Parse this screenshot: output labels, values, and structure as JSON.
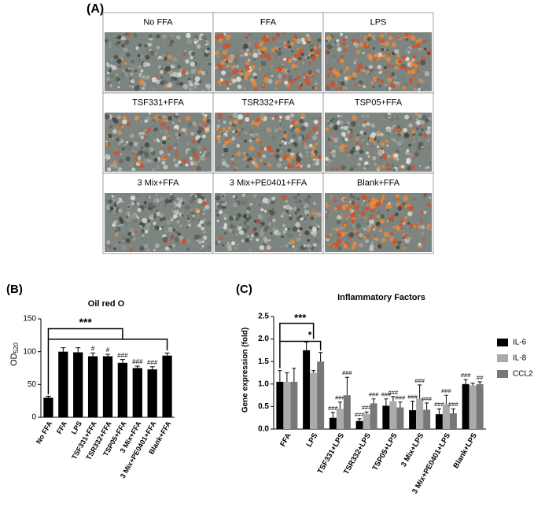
{
  "panel_a": {
    "label": "(A)",
    "images": [
      "No FFA",
      "FFA",
      "LPS",
      "TSF331+FFA",
      "TSR332+FFA",
      "TSP05+FFA",
      "3 Mix+FFA",
      "3 Mix+PE0401+FFA",
      "Blank+FFA"
    ]
  },
  "chart_data": [
    {
      "type": "bar",
      "panel": "(B)",
      "title": "Oil red O",
      "ylabel": "OD",
      "ylabel_sub": "520",
      "categories": [
        "No FFA",
        "FFA",
        "LPS",
        "TSF331+FFA",
        "TSR332+FFA",
        "TSP05+FFA",
        "3 Mix+FFA",
        "3 Mix+PE0401+FFA",
        "Blank+FFA"
      ],
      "values": [
        30,
        100,
        99,
        93,
        93,
        83,
        75,
        73,
        94
      ],
      "errors": [
        2,
        6,
        7,
        5,
        3,
        5,
        3,
        4,
        4
      ],
      "marks": [
        null,
        null,
        null,
        "#",
        "#",
        "###",
        "###",
        "###",
        null
      ],
      "color": "#000000",
      "ylim": [
        0,
        150
      ],
      "yticks": [
        0,
        50,
        100,
        150
      ],
      "annotations": [
        "***"
      ]
    },
    {
      "type": "grouped_bar",
      "panel": "(C)",
      "title": "Inflammatory Factors",
      "ylabel": "Gene expression (fold)",
      "categories": [
        "FFA",
        "LPS",
        "TSF331+LPS",
        "TSR332+LPS",
        "TSP05+LPS",
        "3 Mix+LPS",
        "3 Mix+PE0401+LPS",
        "Blank+LPS"
      ],
      "series": [
        {
          "name": "IL-6",
          "color": "#000000",
          "values": [
            1.05,
            1.75,
            0.25,
            0.18,
            0.52,
            0.42,
            0.33,
            1.0
          ],
          "errors": [
            0.25,
            0.18,
            0.12,
            0.05,
            0.15,
            0.2,
            0.12,
            0.1
          ],
          "marks": [
            null,
            null,
            "###",
            "###",
            "###",
            "###",
            "###",
            "###"
          ]
        },
        {
          "name": "IL-8",
          "color": "#aaaaaa",
          "values": [
            1.05,
            1.25,
            0.45,
            0.33,
            0.62,
            0.68,
            0.55,
            0.97
          ],
          "errors": [
            0.2,
            0.05,
            0.15,
            0.05,
            0.1,
            0.3,
            0.2,
            0.05
          ],
          "marks": [
            null,
            null,
            "###",
            "###",
            "###",
            "###",
            "###",
            null
          ]
        },
        {
          "name": "CCL2",
          "color": "#777777",
          "values": [
            1.05,
            1.5,
            0.75,
            0.57,
            0.48,
            0.43,
            0.35,
            1.0
          ],
          "errors": [
            0.3,
            0.2,
            0.4,
            0.1,
            0.12,
            0.15,
            0.1,
            0.05
          ],
          "marks": [
            null,
            null,
            "###",
            "###",
            "###",
            "###",
            "###",
            "##"
          ]
        }
      ],
      "ylim": [
        0,
        2.5
      ],
      "yticks": [
        {
          "value": 0,
          "label": "0.0"
        },
        {
          "value": 0.5,
          "label": "0.5"
        },
        {
          "value": 1,
          "label": "1.0"
        },
        {
          "value": 1.5,
          "label": "1.5"
        },
        {
          "value": 2,
          "label": "2.0"
        },
        {
          "value": 2.5,
          "label": "2.5"
        }
      ],
      "legend": "right",
      "annotations": [
        "***",
        "*"
      ]
    }
  ]
}
